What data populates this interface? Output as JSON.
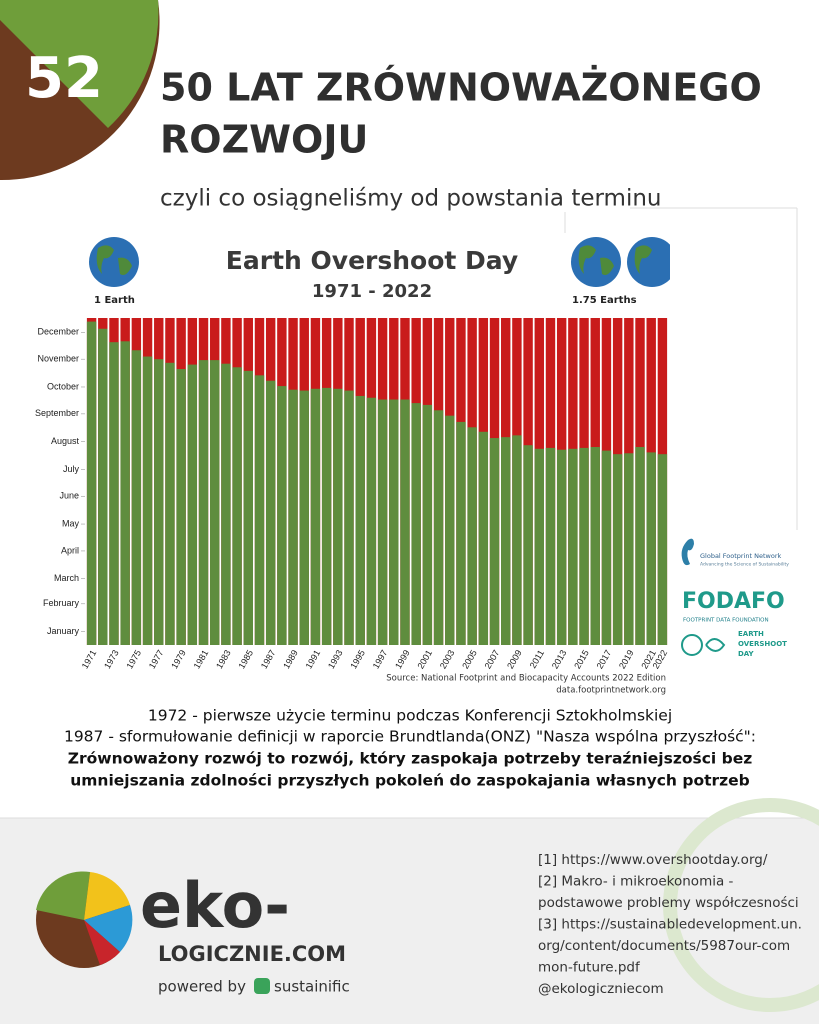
{
  "badge": "52",
  "header": {
    "title_lines": [
      "50 LAT ZRÓWNOWAŻONEGO",
      "ROZWOJU"
    ],
    "subtitle": "czyli co osiągneliśmy od powstania terminu"
  },
  "chart_data": {
    "type": "bar",
    "title": "Earth Overshoot Day",
    "subtitle": "1971 - 2022",
    "categories": [
      "1971",
      null,
      "1973",
      null,
      "1975",
      null,
      "1977",
      null,
      "1979",
      null,
      "1981",
      null,
      "1983",
      null,
      "1985",
      null,
      "1987",
      null,
      "1989",
      null,
      "1991",
      null,
      "1993",
      null,
      "1995",
      null,
      "1997",
      null,
      "1999",
      null,
      "2001",
      null,
      "2003",
      null,
      "2005",
      null,
      "2007",
      null,
      "2009",
      null,
      "2011",
      null,
      "2013",
      null,
      "2015",
      null,
      "2017",
      null,
      "2019",
      null,
      "2021",
      "2022"
    ],
    "values": [
      361,
      353,
      338,
      339,
      329,
      322,
      319,
      315,
      308,
      313,
      318,
      318,
      314,
      310,
      306,
      301,
      295,
      289,
      285,
      284,
      286,
      287,
      286,
      284,
      278,
      276,
      274,
      274,
      274,
      270,
      268,
      262,
      256,
      249,
      243,
      238,
      231,
      232,
      234,
      223,
      219,
      220,
      218,
      219,
      220,
      221,
      217,
      213,
      214,
      221,
      215,
      213
    ],
    "color": "#5f8d3e",
    "background_color": "#c91b1b",
    "ylim": [
      0,
      365
    ],
    "yticks": [
      {
        "value": 15,
        "label": "January"
      },
      {
        "value": 46,
        "label": "February"
      },
      {
        "value": 74,
        "label": "March"
      },
      {
        "value": 105,
        "label": "April"
      },
      {
        "value": 135,
        "label": "May"
      },
      {
        "value": 166,
        "label": "June"
      },
      {
        "value": 196,
        "label": "July"
      },
      {
        "value": 227,
        "label": "August"
      },
      {
        "value": 258,
        "label": "September"
      },
      {
        "value": 288,
        "label": "October"
      },
      {
        "value": 319,
        "label": "November"
      },
      {
        "value": 349,
        "label": "December"
      }
    ],
    "grid": false,
    "left_note": "1 Earth",
    "right_note": "1.75 Earths",
    "source": "Source: National Footprint and Biocapacity Accounts 2022 Edition",
    "source_url": "data.footprintnetwork.org"
  },
  "logos": {
    "gfn": "Global Footprint Network",
    "gfn_tagline": "Advancing the Science of Sustainability",
    "fodafo": "FODAFO",
    "fodafo_sub": "FOOTPRINT DATA FOUNDATION",
    "eod_lines": [
      "EARTH",
      "OVERSHOOT",
      "DAY"
    ]
  },
  "body": {
    "lines": [
      "1972 - pierwsze użycie terminu podczas Konferencji Sztokholmskiej",
      "1987 - sformułowanie definicji w raporcie Brundtlanda(ONZ) \"Nasza wspólna przyszłość\":"
    ],
    "bold_lines": [
      "Zrównoważony rozwój to rozwój, który zaspokaja potrzeby teraźniejszości bez",
      "umniejszania zdolności przyszłych pokoleń do zaspokajania własnych potrzeb"
    ]
  },
  "footer": {
    "brand": "eko-",
    "brand_sub": "LOGICZNIE.COM",
    "powered_by": "powered by",
    "partner": "sustainific",
    "references": [
      "[1] https://www.overshootday.org/",
      "[2]  Makro- i mikroekonomia -",
      "podstawowe problemy współczesności",
      "[3] https://sustainabledevelopment.un.",
      "org/content/documents/5987our-com",
      "mon-future.pdf",
      "@ekologicznie​com"
    ]
  }
}
